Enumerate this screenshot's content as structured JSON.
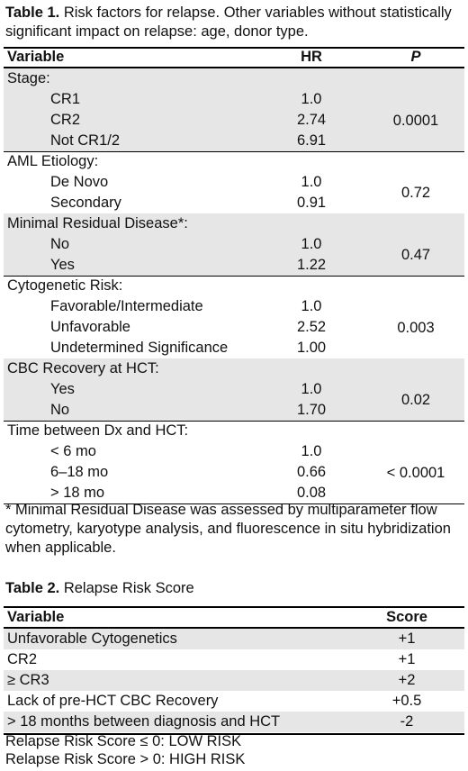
{
  "table1": {
    "label": "Table 1.",
    "caption": "Risk factors for relapse. Other variables without statistically significant impact on relapse: age, donor type.",
    "headers": {
      "variable": "Variable",
      "hr": "HR",
      "p": "P"
    },
    "groups": [
      {
        "title": "Stage:",
        "p": "0.0001",
        "rows": [
          {
            "label": "CR1",
            "hr": "1.0"
          },
          {
            "label": "CR2",
            "hr": "2.74"
          },
          {
            "label": "Not CR1/2",
            "hr": "6.91"
          }
        ]
      },
      {
        "title": "AML Etiology:",
        "p": "0.72",
        "rows": [
          {
            "label": "De Novo",
            "hr": "1.0"
          },
          {
            "label": "Secondary",
            "hr": "0.91"
          }
        ]
      },
      {
        "title": "Minimal Residual Disease*:",
        "p": "0.47",
        "rows": [
          {
            "label": "No",
            "hr": "1.0"
          },
          {
            "label": "Yes",
            "hr": "1.22"
          }
        ]
      },
      {
        "title": "Cytogenetic Risk:",
        "p": "0.003",
        "rows": [
          {
            "label": "Favorable/Intermediate",
            "hr": "1.0"
          },
          {
            "label": "Unfavorable",
            "hr": "2.52"
          },
          {
            "label": "Undetermined Significance",
            "hr": "1.00"
          }
        ]
      },
      {
        "title": "CBC Recovery at HCT:",
        "p": "0.02",
        "rows": [
          {
            "label": "Yes",
            "hr": "1.0"
          },
          {
            "label": "No",
            "hr": "1.70"
          }
        ]
      },
      {
        "title": "Time between Dx and HCT:",
        "p": "< 0.0001",
        "rows": [
          {
            "label": "< 6 mo",
            "hr": "1.0"
          },
          {
            "label": "6–18 mo",
            "hr": "0.66"
          },
          {
            "label": "> 18 mo",
            "hr": "0.08"
          }
        ]
      }
    ],
    "footnote": "* Minimal Residual Disease was assessed by multiparameter flow cytometry, karyotype analysis, and fluorescence in situ hybridization when applicable."
  },
  "table2": {
    "label": "Table 2.",
    "caption": "Relapse Risk Score",
    "headers": {
      "variable": "Variable",
      "score": "Score"
    },
    "rows": [
      {
        "label": "Unfavorable Cytogenetics",
        "score": "+1"
      },
      {
        "label": "CR2",
        "score": "+1"
      },
      {
        "label": "≥ CR3",
        "score": "+2"
      },
      {
        "label": "Lack of pre-HCT CBC Recovery",
        "score": "+0.5"
      },
      {
        "label": "> 18 months between diagnosis and HCT",
        "score": "-2"
      }
    ],
    "footer": [
      "Relapse Risk Score ≤ 0: LOW RISK",
      "Relapse Risk Score > 0: HIGH RISK"
    ]
  }
}
